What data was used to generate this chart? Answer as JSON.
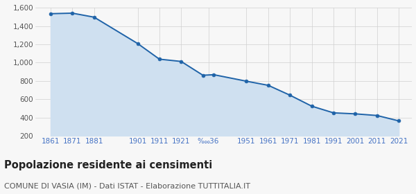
{
  "years": [
    1861,
    1871,
    1881,
    1901,
    1911,
    1921,
    1931,
    1936,
    1951,
    1961,
    1971,
    1981,
    1991,
    2001,
    2011,
    2021
  ],
  "population": [
    1535,
    1541,
    1497,
    1209,
    1038,
    1013,
    862,
    868,
    797,
    752,
    644,
    524,
    451,
    440,
    422,
    363
  ],
  "tick_labels": [
    "1861",
    "1871",
    "1881",
    "1901",
    "1911",
    "1921",
    "‱36",
    "1951",
    "1961",
    "1971",
    "1981",
    "1991",
    "2001",
    "2011",
    "2021"
  ],
  "tick_positions": [
    1861,
    1871,
    1881,
    1901,
    1911,
    1921,
    1933.5,
    1951,
    1961,
    1971,
    1981,
    1991,
    2001,
    2011,
    2021
  ],
  "line_color": "#1f63a8",
  "fill_color": "#cfe0f0",
  "marker_color": "#1f63a8",
  "grid_color": "#d0d0d0",
  "bg_color": "#f7f7f7",
  "ylim": [
    200,
    1600
  ],
  "yticks": [
    200,
    400,
    600,
    800,
    1000,
    1200,
    1400,
    1600
  ],
  "xlim": [
    1854,
    2027
  ],
  "title": "Popolazione residente ai censimenti",
  "subtitle": "COMUNE DI VASIA (IM) - Dati ISTAT - Elaborazione TUTTITALIA.IT",
  "title_fontsize": 10.5,
  "subtitle_fontsize": 8,
  "tick_label_color": "#4472c4",
  "ytick_label_color": "#555555"
}
